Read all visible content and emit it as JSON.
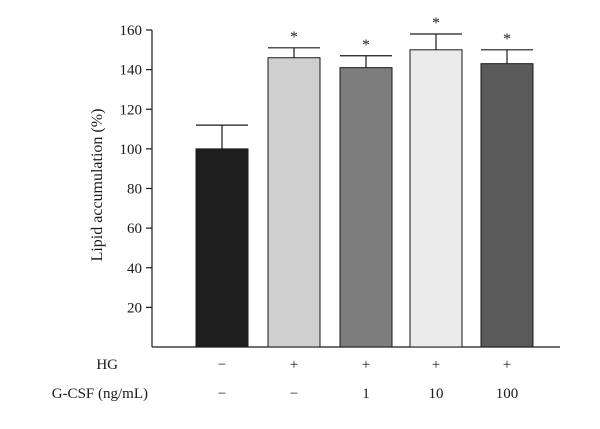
{
  "chart_data": {
    "type": "bar",
    "ylabel": "Lipid accumulation (%)",
    "ylim": [
      0,
      160
    ],
    "yticks": [
      20,
      40,
      60,
      80,
      100,
      120,
      140,
      160
    ],
    "grid": false,
    "bars": [
      {
        "value": 100,
        "error": 12,
        "color": "#1e1e1e",
        "significance": ""
      },
      {
        "value": 146,
        "error": 5,
        "color": "#cfcfcf",
        "significance": "*"
      },
      {
        "value": 141,
        "error": 6,
        "color": "#7d7d7d",
        "significance": "*"
      },
      {
        "value": 150,
        "error": 8,
        "color": "#ebebeb",
        "significance": "*"
      },
      {
        "value": 143,
        "error": 7,
        "color": "#5a5a5a",
        "significance": "*"
      }
    ],
    "condition_rows": [
      {
        "label": "HG",
        "values": [
          "−",
          "+",
          "+",
          "+",
          "+"
        ]
      },
      {
        "label": "G-CSF (ng/mL)",
        "values": [
          "−",
          "−",
          "1",
          "10",
          "100"
        ]
      }
    ]
  }
}
